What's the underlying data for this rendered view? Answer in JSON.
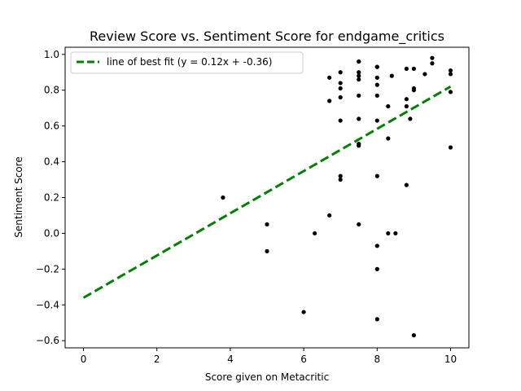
{
  "chart_data": {
    "type": "scatter",
    "title": "Review Score vs. Sentiment Score for endgame_critics",
    "xlabel": "Score given on Metacritic",
    "ylabel": "Sentiment Score",
    "xlim": [
      -0.5,
      10.5
    ],
    "ylim": [
      -0.64,
      1.04
    ],
    "xticks": [
      0,
      2,
      4,
      6,
      8,
      10
    ],
    "yticks": [
      -0.6,
      -0.4,
      -0.2,
      0.0,
      0.2,
      0.4,
      0.6,
      0.8,
      1.0
    ],
    "xtick_labels": [
      "0",
      "2",
      "4",
      "6",
      "8",
      "10"
    ],
    "ytick_labels": [
      "−0.6",
      "−0.4",
      "−0.2",
      "0.0",
      "0.2",
      "0.4",
      "0.6",
      "0.8",
      "1.0"
    ],
    "grid": false,
    "legend_position": "upper-left",
    "series": [
      {
        "name": "line of best fit (y = 0.12x + -0.36)",
        "kind": "line",
        "style": "dashed",
        "color": "#008000",
        "x": [
          0,
          10
        ],
        "y": [
          -0.36,
          0.82
        ]
      },
      {
        "kind": "scatter",
        "color": "#000000",
        "x": [
          3.8,
          5.0,
          5.0,
          6.0,
          6.3,
          6.7,
          6.7,
          6.7,
          7.0,
          7.0,
          7.0,
          7.0,
          7.0,
          7.0,
          7.0,
          7.5,
          7.5,
          7.5,
          7.5,
          7.5,
          7.5,
          7.5,
          7.5,
          7.5,
          7.5,
          8.0,
          8.0,
          8.0,
          8.0,
          8.0,
          8.0,
          8.0,
          8.0,
          8.0,
          8.0,
          8.3,
          8.3,
          8.3,
          8.4,
          8.5,
          8.8,
          8.8,
          8.8,
          8.8,
          8.9,
          9.0,
          9.0,
          9.0,
          9.0,
          9.3,
          9.5,
          9.5,
          10.0,
          10.0,
          10.0,
          10.0
        ],
        "y": [
          0.2,
          0.05,
          -0.1,
          -0.44,
          0.0,
          0.87,
          0.74,
          0.1,
          0.9,
          0.84,
          0.81,
          0.76,
          0.63,
          0.32,
          0.3,
          0.96,
          0.96,
          0.9,
          0.88,
          0.86,
          0.77,
          0.64,
          0.5,
          0.49,
          0.05,
          0.93,
          0.87,
          0.83,
          0.77,
          0.63,
          0.32,
          -0.07,
          -0.2,
          -0.48,
          0.93,
          0.71,
          0.53,
          0.0,
          0.88,
          0.0,
          0.92,
          0.75,
          0.71,
          0.27,
          0.64,
          0.92,
          0.81,
          0.8,
          -0.57,
          0.89,
          0.98,
          0.95,
          0.91,
          0.89,
          0.79,
          0.48
        ]
      }
    ]
  }
}
